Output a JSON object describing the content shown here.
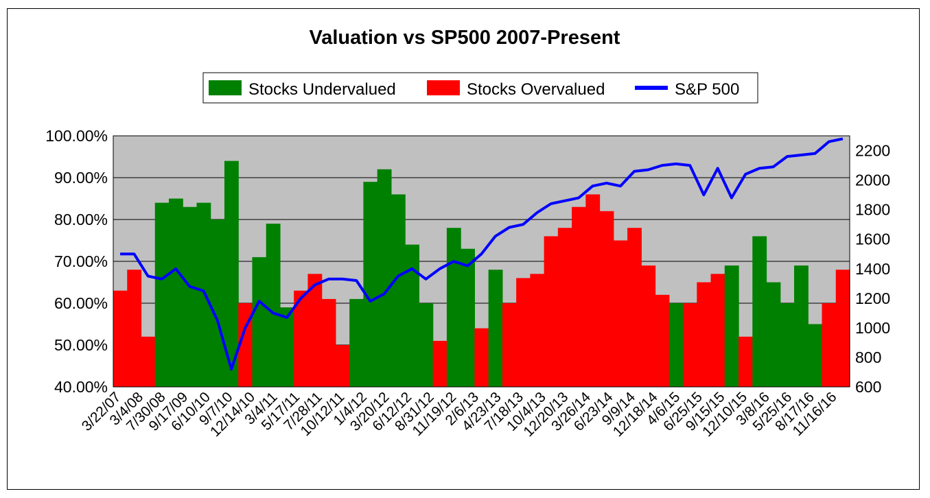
{
  "chart_data": {
    "type": "bar+line",
    "title": "Valuation vs SP500 2007-Present",
    "legend": {
      "placement": "top-center",
      "items": [
        {
          "label": "Stocks Undervalued",
          "color": "#008000",
          "kind": "area"
        },
        {
          "label": "Stocks Overvalued",
          "color": "#ff0000",
          "kind": "area"
        },
        {
          "label": "S&P 500",
          "color": "#0000ff",
          "kind": "line"
        }
      ]
    },
    "colors": {
      "undervalued": "#008000",
      "overvalued": "#ff0000",
      "sp500": "#0000ff",
      "plot_bg": "#c0c0c0"
    },
    "y_left": {
      "ylim": [
        40,
        100
      ],
      "ticks": [
        "100.00%",
        "90.00%",
        "80.00%",
        "70.00%",
        "60.00%",
        "50.00%",
        "40.00%"
      ],
      "tick_values": [
        100,
        90,
        80,
        70,
        60,
        50,
        40
      ]
    },
    "y_right": {
      "ylim": [
        600,
        2300
      ],
      "ticks": [
        "2200",
        "2000",
        "1800",
        "1600",
        "1400",
        "1200",
        "1000",
        "800",
        "600"
      ],
      "tick_values": [
        2200,
        2000,
        1800,
        1600,
        1400,
        1200,
        1000,
        800,
        600
      ]
    },
    "x_ticks": [
      "3/22/07",
      "3/4/08",
      "7/30/08",
      "9/17/09",
      "6/10/10",
      "9/7/10",
      "12/14/10",
      "3/4/11",
      "5/17/11",
      "7/28/11",
      "10/12/11",
      "1/4/12",
      "3/20/12",
      "6/12/12",
      "8/31/12",
      "11/19/12",
      "2/6/13",
      "4/23/13",
      "7/18/13",
      "10/4/13",
      "12/20/13",
      "3/26/14",
      "6/23/14",
      "9/9/14",
      "12/18/14",
      "4/6/15",
      "6/25/15",
      "9/15/15",
      "12/10/15",
      "3/8/16",
      "5/25/16",
      "8/17/16",
      "11/16/16"
    ],
    "grid": true,
    "valuation_series": [
      {
        "x": 0,
        "status": "overvalued",
        "value": 63
      },
      {
        "x": 1,
        "status": "overvalued",
        "value": 68
      },
      {
        "x": 2,
        "status": "overvalued",
        "value": 52
      },
      {
        "x": 3,
        "status": "undervalued",
        "value": 84
      },
      {
        "x": 4,
        "status": "undervalued",
        "value": 85
      },
      {
        "x": 5,
        "status": "undervalued",
        "value": 83
      },
      {
        "x": 6,
        "status": "undervalued",
        "value": 84
      },
      {
        "x": 7,
        "status": "undervalued",
        "value": 80
      },
      {
        "x": 8,
        "status": "undervalued",
        "value": 94
      },
      {
        "x": 9,
        "status": "overvalued",
        "value": 60
      },
      {
        "x": 10,
        "status": "undervalued",
        "value": 71
      },
      {
        "x": 11,
        "status": "undervalued",
        "value": 79
      },
      {
        "x": 12,
        "status": "undervalued",
        "value": 59
      },
      {
        "x": 13,
        "status": "overvalued",
        "value": 63
      },
      {
        "x": 14,
        "status": "overvalued",
        "value": 67
      },
      {
        "x": 15,
        "status": "overvalued",
        "value": 61
      },
      {
        "x": 16,
        "status": "overvalued",
        "value": 50
      },
      {
        "x": 17,
        "status": "undervalued",
        "value": 61
      },
      {
        "x": 18,
        "status": "undervalued",
        "value": 89
      },
      {
        "x": 19,
        "status": "undervalued",
        "value": 92
      },
      {
        "x": 20,
        "status": "undervalued",
        "value": 86
      },
      {
        "x": 21,
        "status": "undervalued",
        "value": 74
      },
      {
        "x": 22,
        "status": "undervalued",
        "value": 60
      },
      {
        "x": 23,
        "status": "overvalued",
        "value": 51
      },
      {
        "x": 24,
        "status": "undervalued",
        "value": 78
      },
      {
        "x": 25,
        "status": "undervalued",
        "value": 73
      },
      {
        "x": 26,
        "status": "overvalued",
        "value": 54
      },
      {
        "x": 27,
        "status": "undervalued",
        "value": 68
      },
      {
        "x": 28,
        "status": "overvalued",
        "value": 60
      },
      {
        "x": 29,
        "status": "overvalued",
        "value": 66
      },
      {
        "x": 30,
        "status": "overvalued",
        "value": 67
      },
      {
        "x": 31,
        "status": "overvalued",
        "value": 76
      },
      {
        "x": 32,
        "status": "overvalued",
        "value": 78
      },
      {
        "x": 33,
        "status": "overvalued",
        "value": 83
      },
      {
        "x": 34,
        "status": "overvalued",
        "value": 86
      },
      {
        "x": 35,
        "status": "overvalued",
        "value": 82
      },
      {
        "x": 36,
        "status": "overvalued",
        "value": 75
      },
      {
        "x": 37,
        "status": "overvalued",
        "value": 78
      },
      {
        "x": 38,
        "status": "overvalued",
        "value": 69
      },
      {
        "x": 39,
        "status": "overvalued",
        "value": 62
      },
      {
        "x": 40,
        "status": "undervalued",
        "value": 60
      },
      {
        "x": 41,
        "status": "overvalued",
        "value": 60
      },
      {
        "x": 42,
        "status": "overvalued",
        "value": 65
      },
      {
        "x": 43,
        "status": "overvalued",
        "value": 67
      },
      {
        "x": 44,
        "status": "undervalued",
        "value": 69
      },
      {
        "x": 45,
        "status": "overvalued",
        "value": 52
      },
      {
        "x": 46,
        "status": "undervalued",
        "value": 76
      },
      {
        "x": 47,
        "status": "undervalued",
        "value": 65
      },
      {
        "x": 48,
        "status": "undervalued",
        "value": 60
      },
      {
        "x": 49,
        "status": "undervalued",
        "value": 69
      },
      {
        "x": 50,
        "status": "undervalued",
        "value": 55
      },
      {
        "x": 51,
        "status": "overvalued",
        "value": 60
      },
      {
        "x": 52,
        "status": "overvalued",
        "value": 68
      }
    ],
    "sp500_series": [
      {
        "x": 0,
        "value": 1500
      },
      {
        "x": 1,
        "value": 1500
      },
      {
        "x": 2,
        "value": 1350
      },
      {
        "x": 3,
        "value": 1330
      },
      {
        "x": 4,
        "value": 1400
      },
      {
        "x": 5,
        "value": 1280
      },
      {
        "x": 6,
        "value": 1250
      },
      {
        "x": 7,
        "value": 1050
      },
      {
        "x": 8,
        "value": 720
      },
      {
        "x": 9,
        "value": 1000
      },
      {
        "x": 10,
        "value": 1180
      },
      {
        "x": 11,
        "value": 1100
      },
      {
        "x": 12,
        "value": 1070
      },
      {
        "x": 13,
        "value": 1200
      },
      {
        "x": 14,
        "value": 1290
      },
      {
        "x": 15,
        "value": 1330
      },
      {
        "x": 16,
        "value": 1330
      },
      {
        "x": 17,
        "value": 1320
      },
      {
        "x": 18,
        "value": 1180
      },
      {
        "x": 19,
        "value": 1230
      },
      {
        "x": 20,
        "value": 1350
      },
      {
        "x": 21,
        "value": 1400
      },
      {
        "x": 22,
        "value": 1330
      },
      {
        "x": 23,
        "value": 1400
      },
      {
        "x": 24,
        "value": 1450
      },
      {
        "x": 25,
        "value": 1420
      },
      {
        "x": 26,
        "value": 1500
      },
      {
        "x": 27,
        "value": 1620
      },
      {
        "x": 28,
        "value": 1680
      },
      {
        "x": 29,
        "value": 1700
      },
      {
        "x": 30,
        "value": 1780
      },
      {
        "x": 31,
        "value": 1840
      },
      {
        "x": 32,
        "value": 1860
      },
      {
        "x": 33,
        "value": 1880
      },
      {
        "x": 34,
        "value": 1960
      },
      {
        "x": 35,
        "value": 1980
      },
      {
        "x": 36,
        "value": 1960
      },
      {
        "x": 37,
        "value": 2060
      },
      {
        "x": 38,
        "value": 2070
      },
      {
        "x": 39,
        "value": 2100
      },
      {
        "x": 40,
        "value": 2110
      },
      {
        "x": 41,
        "value": 2100
      },
      {
        "x": 42,
        "value": 1900
      },
      {
        "x": 43,
        "value": 2080
      },
      {
        "x": 44,
        "value": 1880
      },
      {
        "x": 45,
        "value": 2040
      },
      {
        "x": 46,
        "value": 2080
      },
      {
        "x": 47,
        "value": 2090
      },
      {
        "x": 48,
        "value": 2160
      },
      {
        "x": 49,
        "value": 2170
      },
      {
        "x": 50,
        "value": 2180
      },
      {
        "x": 51,
        "value": 2260
      },
      {
        "x": 52,
        "value": 2280
      }
    ]
  }
}
